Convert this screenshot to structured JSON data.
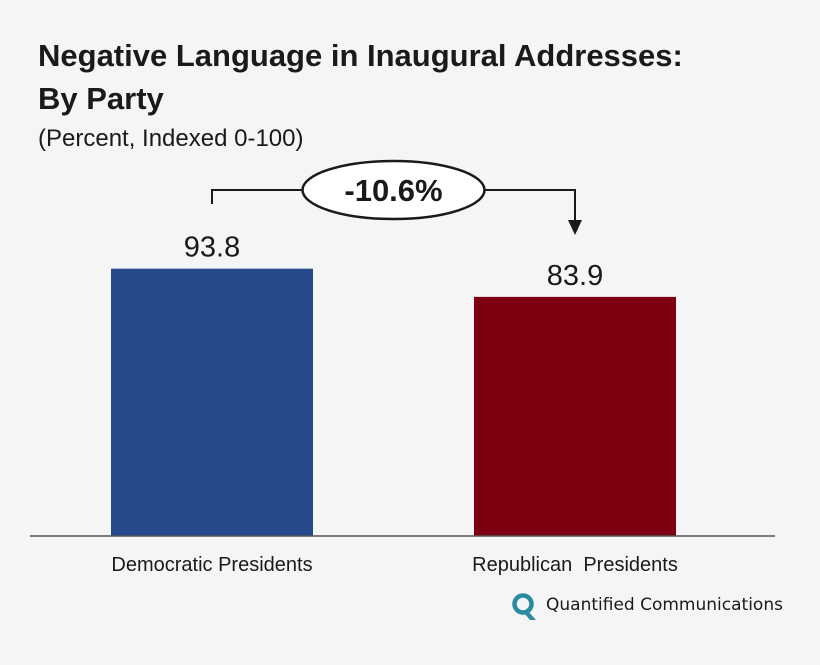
{
  "chart_data": {
    "type": "bar",
    "title_line1": "Negative Language in Inaugural Addresses:",
    "title_line2": "By Party",
    "subtitle": "(Percent, Indexed 0-100)",
    "categories": [
      "Democratic Presidents",
      "Republican  Presidents"
    ],
    "values": [
      93.8,
      83.9
    ],
    "value_labels": [
      "93.8",
      "83.9"
    ],
    "colors": [
      "#264a8c",
      "#7c0011"
    ],
    "ylim": [
      0,
      100
    ],
    "grid": false,
    "legend": "none",
    "annotation": {
      "label": "-10.6%",
      "from": 0,
      "to": 1
    }
  },
  "brand": {
    "name": "Quantified Communications",
    "icon": "q-logo-icon",
    "color": "#2a8aa0"
  }
}
